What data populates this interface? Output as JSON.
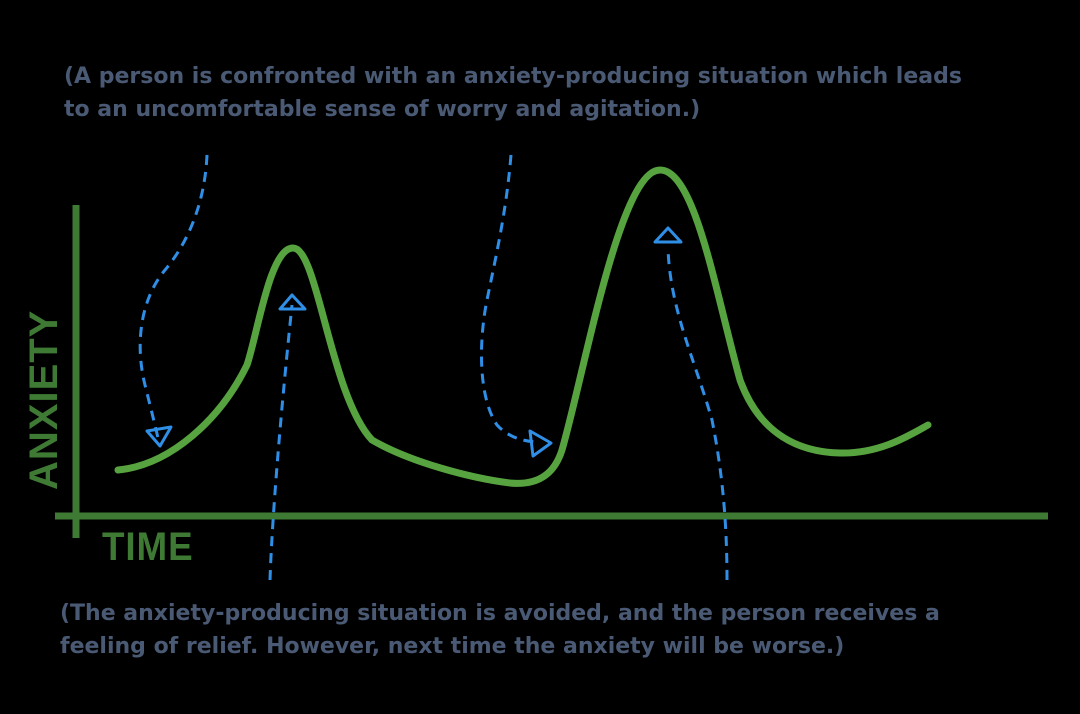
{
  "captions": {
    "top": {
      "line1": "(A person is confronted with an anxiety-producing situation which leads",
      "line2": "to an uncomfortable sense of worry and agitation.)"
    },
    "bottom": {
      "line1": "(The anxiety-producing situation is avoided, and the person receives a",
      "line2": "feeling of relief. However, next time the anxiety will be worse.)"
    }
  },
  "axes": {
    "x_label": "TIME",
    "y_label": "ANXIETY"
  },
  "colors": {
    "background": "#000000",
    "curve": "#56a33f",
    "axis": "#3f7a35",
    "arrows": "#2f8fe6",
    "caption_text": "#4a5a75"
  }
}
